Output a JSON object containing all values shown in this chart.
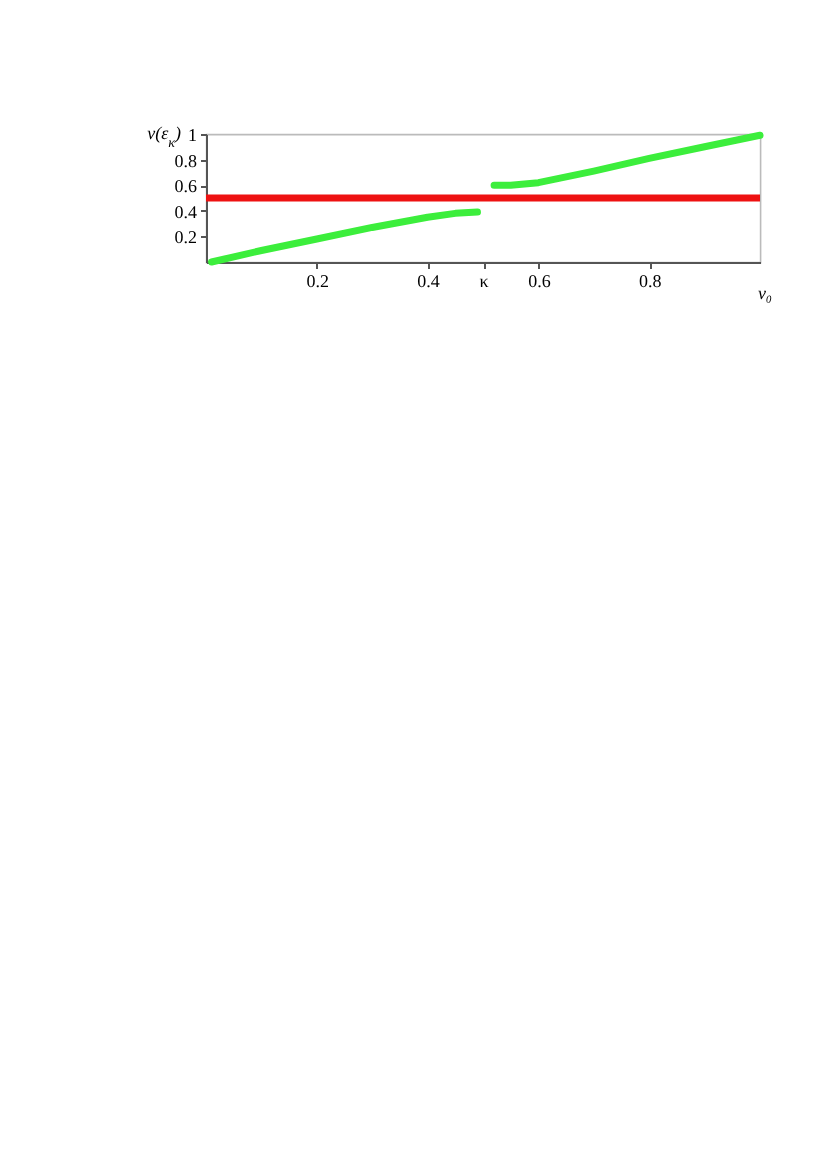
{
  "chart_data": {
    "type": "line",
    "xlabel": "ν₀",
    "ylabel": "ν(ε$_{κ}$)",
    "xlim": [
      0,
      1
    ],
    "ylim": [
      0,
      1
    ],
    "xticks": [
      0.2,
      0.4,
      {
        "value": 0.5,
        "label": "κ"
      },
      0.6,
      0.8
    ],
    "yticks": [
      0.2,
      0.4,
      0.6,
      0.8,
      1
    ],
    "series": [
      {
        "color": "#3cee3c",
        "x": [
          0.01,
          0.1,
          0.2,
          0.3,
          0.4,
          0.45,
          0.49,
          0.505,
          0.52,
          0.55,
          0.6,
          0.7,
          0.8,
          0.9,
          1.0
        ],
        "values": [
          0,
          0.09,
          0.18,
          0.27,
          0.35,
          0.38,
          0.39,
          null,
          0.6,
          0.6,
          0.62,
          0.71,
          0.81,
          0.9,
          0.99
        ]
      }
    ],
    "ref_lines": [
      {
        "axis": "y",
        "value": 0.5,
        "color": "#ee1111"
      }
    ],
    "grid": false
  }
}
